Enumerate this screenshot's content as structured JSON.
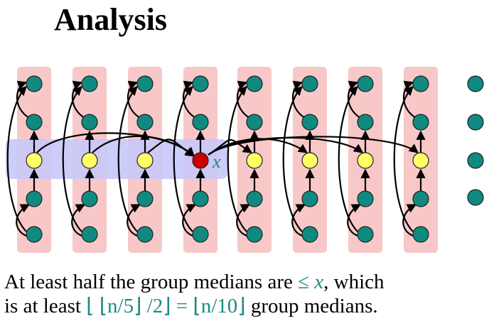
{
  "title": "Analysis",
  "diagram": {
    "pivot_label": "x",
    "columns": 8,
    "rows_per_column": 5,
    "extra_dots": 4,
    "colors": {
      "column_band": "#f8c8c8",
      "median_band": "#c8c8f8",
      "node": "#0f8a80",
      "median_node": "#ffff66",
      "pivot_node": "#cc0000",
      "arrow": "#000000",
      "label": "#1b8a80"
    }
  },
  "caption": {
    "line1_a": "At least half the group medians are ",
    "line1_rel": "≤ ",
    "line1_var": "x",
    "line1_b": ", which",
    "line2_a": "is at least ",
    "line2_formula": "⌊ ⌊n/5⌋ /2⌋ = ⌊n/10⌋",
    "line2_b": " group medians."
  }
}
